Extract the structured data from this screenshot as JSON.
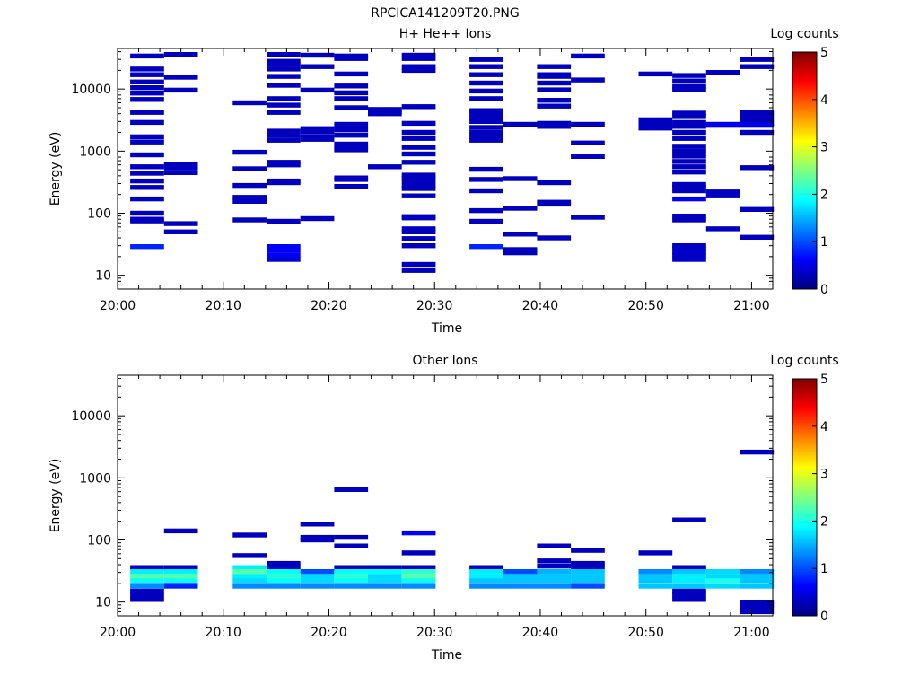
{
  "figure_title": "RPCICA141209T20.PNG",
  "colors": {
    "colormap": [
      "#000080",
      "#0000ff",
      "#0080ff",
      "#00ffff",
      "#80ff80",
      "#ffff00",
      "#ff8000",
      "#ff0000",
      "#800000"
    ]
  },
  "chart_data": [
    {
      "type": "heatmap",
      "title": "H+ He++ Ions",
      "xlabel": "Time",
      "ylabel": "Energy (eV)",
      "yscale": "log",
      "xlim": [
        0,
        62
      ],
      "ylim": [
        6,
        45000
      ],
      "x_ticks": [
        {
          "value": 0,
          "label": "20:00"
        },
        {
          "value": 10,
          "label": "20:10"
        },
        {
          "value": 20,
          "label": "20:20"
        },
        {
          "value": 30,
          "label": "20:30"
        },
        {
          "value": 40,
          "label": "20:40"
        },
        {
          "value": 50,
          "label": "20:50"
        },
        {
          "value": 60,
          "label": "21:00"
        }
      ],
      "y_ticks": [
        {
          "value": 10,
          "label": "10"
        },
        {
          "value": 100,
          "label": "100"
        },
        {
          "value": 1000,
          "label": "1000"
        },
        {
          "value": 10000,
          "label": "10000"
        }
      ],
      "colorbar": {
        "label": "Log counts",
        "range": [
          0,
          5
        ],
        "ticks": [
          "0",
          "1",
          "2",
          "3",
          "4",
          "5"
        ]
      },
      "time_bins": [
        [
          1.2,
          4.4
        ],
        [
          4.4,
          7.6
        ],
        [
          10.9,
          14.1
        ],
        [
          14.1,
          17.3
        ],
        [
          17.3,
          20.5
        ],
        [
          20.5,
          23.7
        ],
        [
          23.7,
          26.9
        ],
        [
          26.9,
          30.1
        ],
        [
          33.3,
          36.5
        ],
        [
          36.5,
          39.7
        ],
        [
          39.7,
          42.9
        ],
        [
          42.9,
          46.1
        ],
        [
          49.3,
          52.5
        ],
        [
          52.5,
          55.7
        ],
        [
          55.7,
          58.9
        ],
        [
          58.9,
          62.1
        ]
      ],
      "cells": [
        {
          "bin": 0,
          "energies": [
            34000,
            21000,
            17000,
            13000,
            10500,
            8600,
            6800,
            4200,
            2900,
            1700,
            1400,
            870,
            560,
            440,
            330,
            260,
            170,
            100,
            80,
            75
          ],
          "value": 0.3
        },
        {
          "bin": 0,
          "energies": [
            29
          ],
          "value": 0.8
        },
        {
          "bin": 1,
          "energies": [
            36000,
            15500,
            9600,
            620,
            540,
            450,
            68,
            50
          ],
          "value": 0.3
        },
        {
          "bin": 2,
          "energies": [
            6000,
            960,
            520,
            280,
            180,
            155,
            78
          ],
          "value": 0.3
        },
        {
          "bin": 3,
          "energies": [
            36000,
            28000,
            25000,
            21000,
            16000,
            11500,
            7000,
            5500,
            4200,
            2100,
            1800,
            1500,
            660,
            600,
            330,
            310,
            74
          ],
          "value": 0.3
        },
        {
          "bin": 3,
          "energies": [
            29,
            25,
            21
          ],
          "value": 0.6
        },
        {
          "bin": 3,
          "energies": [
            18
          ],
          "value": 0.4
        },
        {
          "bin": 4,
          "energies": [
            35000,
            23000,
            9600,
            2300,
            2050,
            1700,
            1550,
            82
          ],
          "value": 0.3
        },
        {
          "bin": 5,
          "energies": [
            34000,
            31000,
            17500,
            11200,
            8700,
            7000,
            5000,
            2700,
            2200,
            1800,
            1300,
            1150,
            1050,
            370,
            350,
            270
          ],
          "value": 0.3
        },
        {
          "bin": 6,
          "energies": [
            4700,
            4300,
            4000,
            560
          ],
          "value": 0.3
        },
        {
          "bin": 7,
          "energies": [
            35000,
            31000,
            23000,
            20000,
            5200,
            2800,
            2000,
            1600,
            1150,
            900,
            660,
            410,
            370,
            330,
            280,
            250,
            190,
            88,
            84,
            56,
            50,
            39,
            30,
            15,
            12
          ],
          "value": 0.3
        },
        {
          "bin": 8,
          "energies": [
            30000,
            23000,
            17000,
            12500,
            9300,
            7000,
            4500,
            4000,
            3400,
            3000,
            2400,
            2000,
            1700,
            1500,
            510,
            350,
            230,
            110,
            74
          ],
          "value": 0.3
        },
        {
          "bin": 8,
          "energies": [
            29
          ],
          "value": 0.8
        },
        {
          "bin": 9,
          "energies": [
            2700,
            360,
            120,
            46,
            26,
            23
          ],
          "value": 0.3
        },
        {
          "bin": 10,
          "energies": [
            23000,
            17000,
            16000,
            12500,
            9700,
            6600,
            5300,
            2800,
            2600,
            2500,
            310,
            150,
            140,
            40
          ],
          "value": 0.3
        },
        {
          "bin": 11,
          "energies": [
            34000,
            14000,
            2700,
            1350,
            820,
            86
          ],
          "value": 0.3
        },
        {
          "bin": 12,
          "energies": [
            17500,
            3200,
            2900,
            2550,
            2450,
            2350
          ],
          "value": 0.3
        },
        {
          "bin": 13,
          "energies": [
            16500,
            13500,
            11000,
            9800,
            4100,
            3600,
            2900,
            2500,
            2000,
            1600,
            1200,
            1000,
            830,
            680,
            560,
            460,
            290,
            260,
            230,
            90,
            78
          ],
          "value": 0.3
        },
        {
          "bin": 13,
          "energies": [
            170
          ],
          "value": 0.6
        },
        {
          "bin": 13,
          "energies": [
            30,
            27,
            24,
            21,
            18
          ],
          "value": 0.35
        },
        {
          "bin": 14,
          "energies": [
            18500,
            2700,
            2600,
            220,
            190,
            56
          ],
          "value": 0.3
        },
        {
          "bin": 14,
          "energies": [
            2650
          ],
          "value": 0.6
        },
        {
          "bin": 15,
          "energies": [
            30000,
            23000,
            4200,
            3700,
            3200,
            2800,
            2000,
            540,
            115,
            41
          ],
          "value": 0.3
        },
        {
          "bin": 15,
          "energies": [
            2600
          ],
          "value": 0.6
        }
      ]
    },
    {
      "type": "heatmap",
      "title": "Other Ions",
      "xlabel": "Time",
      "ylabel": "Energy (eV)",
      "yscale": "log",
      "xlim": [
        0,
        62
      ],
      "ylim": [
        6,
        45000
      ],
      "x_ticks": [
        {
          "value": 0,
          "label": "20:00"
        },
        {
          "value": 10,
          "label": "20:10"
        },
        {
          "value": 20,
          "label": "20:20"
        },
        {
          "value": 30,
          "label": "20:30"
        },
        {
          "value": 40,
          "label": "20:40"
        },
        {
          "value": 50,
          "label": "20:50"
        },
        {
          "value": 60,
          "label": "21:00"
        }
      ],
      "y_ticks": [
        {
          "value": 10,
          "label": "10"
        },
        {
          "value": 100,
          "label": "100"
        },
        {
          "value": 1000,
          "label": "1000"
        },
        {
          "value": 10000,
          "label": "10000"
        }
      ],
      "colorbar": {
        "label": "Log counts",
        "range": [
          0,
          5
        ],
        "ticks": [
          "0",
          "1",
          "2",
          "3",
          "4",
          "5"
        ]
      },
      "time_bins": [
        [
          1.2,
          4.4
        ],
        [
          4.4,
          7.6
        ],
        [
          10.9,
          14.1
        ],
        [
          14.1,
          17.3
        ],
        [
          17.3,
          20.5
        ],
        [
          20.5,
          23.7
        ],
        [
          23.7,
          26.9
        ],
        [
          26.9,
          30.1
        ],
        [
          33.3,
          36.5
        ],
        [
          36.5,
          39.7
        ],
        [
          39.7,
          42.9
        ],
        [
          42.9,
          46.1
        ],
        [
          49.3,
          52.5
        ],
        [
          52.5,
          55.7
        ],
        [
          55.7,
          58.9
        ],
        [
          58.9,
          62.1
        ]
      ],
      "cells": [
        {
          "bin": 0,
          "energies": [
            36
          ],
          "value": 0.3
        },
        {
          "bin": 0,
          "energies": [
            31
          ],
          "value": 1.8
        },
        {
          "bin": 0,
          "energies": [
            26
          ],
          "value": 2.3
        },
        {
          "bin": 0,
          "energies": [
            22
          ],
          "value": 1.9
        },
        {
          "bin": 0,
          "energies": [
            18
          ],
          "value": 1.3
        },
        {
          "bin": 0,
          "energies": [
            15,
            13,
            11
          ],
          "value": 0.3
        },
        {
          "bin": 1,
          "energies": [
            140
          ],
          "value": 0.3
        },
        {
          "bin": 1,
          "energies": [
            36
          ],
          "value": 0.3
        },
        {
          "bin": 1,
          "energies": [
            31
          ],
          "value": 1.8
        },
        {
          "bin": 1,
          "energies": [
            26
          ],
          "value": 2.3
        },
        {
          "bin": 1,
          "energies": [
            22
          ],
          "value": 1.9
        },
        {
          "bin": 1,
          "energies": [
            18
          ],
          "value": 0.8
        },
        {
          "bin": 2,
          "energies": [
            120,
            56
          ],
          "value": 0.3
        },
        {
          "bin": 2,
          "energies": [
            36
          ],
          "value": 1.8
        },
        {
          "bin": 2,
          "energies": [
            31
          ],
          "value": 2.3
        },
        {
          "bin": 2,
          "energies": [
            26
          ],
          "value": 1.8
        },
        {
          "bin": 2,
          "energies": [
            22
          ],
          "value": 1.7
        },
        {
          "bin": 2,
          "energies": [
            18
          ],
          "value": 1.3
        },
        {
          "bin": 3,
          "energies": [
            42,
            37
          ],
          "value": 0.3
        },
        {
          "bin": 3,
          "energies": [
            31
          ],
          "value": 1.9
        },
        {
          "bin": 3,
          "energies": [
            26
          ],
          "value": 2.1
        },
        {
          "bin": 3,
          "energies": [
            22
          ],
          "value": 1.9
        },
        {
          "bin": 3,
          "energies": [
            18
          ],
          "value": 1.3
        },
        {
          "bin": 4,
          "energies": [
            180,
            110,
            100
          ],
          "value": 0.3
        },
        {
          "bin": 4,
          "energies": [
            31
          ],
          "value": 1.0
        },
        {
          "bin": 4,
          "energies": [
            26
          ],
          "value": 1.7
        },
        {
          "bin": 4,
          "energies": [
            22
          ],
          "value": 1.7
        },
        {
          "bin": 4,
          "energies": [
            18
          ],
          "value": 1.3
        },
        {
          "bin": 5,
          "energies": [
            650,
            110,
            80,
            36
          ],
          "value": 0.3
        },
        {
          "bin": 5,
          "energies": [
            31
          ],
          "value": 1.9
        },
        {
          "bin": 5,
          "energies": [
            26
          ],
          "value": 2.1
        },
        {
          "bin": 5,
          "energies": [
            22
          ],
          "value": 1.9
        },
        {
          "bin": 5,
          "energies": [
            18
          ],
          "value": 1.3
        },
        {
          "bin": 6,
          "energies": [
            36
          ],
          "value": 0.3
        },
        {
          "bin": 6,
          "energies": [
            31
          ],
          "value": 1.9
        },
        {
          "bin": 6,
          "energies": [
            26
          ],
          "value": 1.7
        },
        {
          "bin": 6,
          "energies": [
            22
          ],
          "value": 1.7
        },
        {
          "bin": 6,
          "energies": [
            18
          ],
          "value": 1.3
        },
        {
          "bin": 7,
          "energies": [
            130
          ],
          "value": 0.6
        },
        {
          "bin": 7,
          "energies": [
            62,
            36
          ],
          "value": 0.3
        },
        {
          "bin": 7,
          "energies": [
            31
          ],
          "value": 2.1
        },
        {
          "bin": 7,
          "energies": [
            26
          ],
          "value": 2.3
        },
        {
          "bin": 7,
          "energies": [
            22
          ],
          "value": 1.9
        },
        {
          "bin": 7,
          "energies": [
            18
          ],
          "value": 1.3
        },
        {
          "bin": 8,
          "energies": [
            36
          ],
          "value": 0.3
        },
        {
          "bin": 8,
          "energies": [
            31
          ],
          "value": 1.8
        },
        {
          "bin": 8,
          "energies": [
            26
          ],
          "value": 1.8
        },
        {
          "bin": 8,
          "energies": [
            22
          ],
          "value": 1.6
        },
        {
          "bin": 8,
          "energies": [
            18
          ],
          "value": 1.3
        },
        {
          "bin": 9,
          "energies": [
            31
          ],
          "value": 1.0
        },
        {
          "bin": 9,
          "energies": [
            26,
            22
          ],
          "value": 1.6
        },
        {
          "bin": 9,
          "energies": [
            18
          ],
          "value": 1.3
        },
        {
          "bin": 10,
          "energies": [
            80,
            46,
            38
          ],
          "value": 0.3
        },
        {
          "bin": 10,
          "energies": [
            31
          ],
          "value": 1.5
        },
        {
          "bin": 10,
          "energies": [
            26,
            22
          ],
          "value": 1.6
        },
        {
          "bin": 10,
          "energies": [
            18
          ],
          "value": 1.3
        },
        {
          "bin": 11,
          "energies": [
            68,
            42,
            37
          ],
          "value": 0.3
        },
        {
          "bin": 11,
          "energies": [
            31,
            26,
            22
          ],
          "value": 1.6
        },
        {
          "bin": 11,
          "energies": [
            18
          ],
          "value": 1.0
        },
        {
          "bin": 12,
          "energies": [
            62
          ],
          "value": 0.3
        },
        {
          "bin": 12,
          "energies": [
            31
          ],
          "value": 1.3
        },
        {
          "bin": 12,
          "energies": [
            26,
            22,
            18
          ],
          "value": 1.6
        },
        {
          "bin": 13,
          "energies": [
            210,
            36
          ],
          "value": 0.3
        },
        {
          "bin": 13,
          "energies": [
            31
          ],
          "value": 1.6
        },
        {
          "bin": 13,
          "energies": [
            26,
            22
          ],
          "value": 1.8
        },
        {
          "bin": 13,
          "energies": [
            18
          ],
          "value": 1.6
        },
        {
          "bin": 13,
          "energies": [
            15,
            13,
            11
          ],
          "value": 0.3
        },
        {
          "bin": 14,
          "energies": [
            31,
            26
          ],
          "value": 1.7
        },
        {
          "bin": 14,
          "energies": [
            22
          ],
          "value": 2.0
        },
        {
          "bin": 14,
          "energies": [
            18
          ],
          "value": 1.7
        },
        {
          "bin": 15,
          "energies": [
            2600
          ],
          "value": 0.3
        },
        {
          "bin": 15,
          "energies": [
            31
          ],
          "value": 1.3
        },
        {
          "bin": 15,
          "energies": [
            26,
            22,
            18
          ],
          "value": 1.6
        },
        {
          "bin": 15,
          "energies": [
            10,
            9,
            8,
            7
          ],
          "value": 0.3
        }
      ]
    }
  ]
}
